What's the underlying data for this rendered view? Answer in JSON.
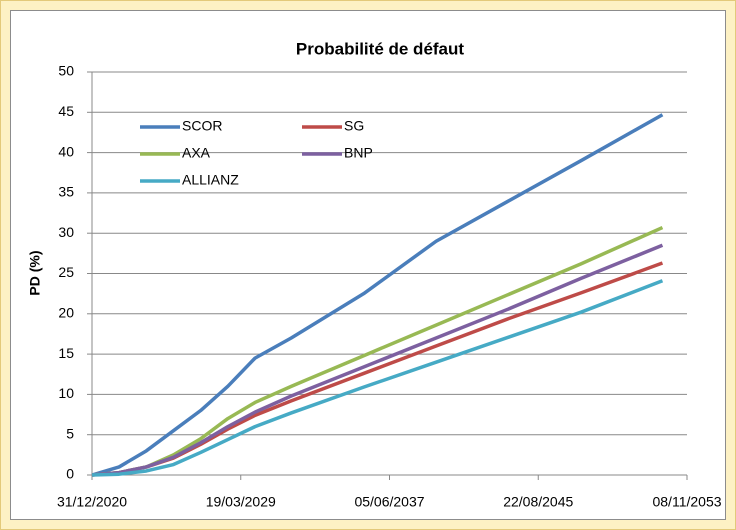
{
  "chart_data": {
    "type": "line",
    "title": "Probabilité de défaut",
    "y_label": "PD (%)",
    "x": [
      "2021-01-01",
      "2022-07-01",
      "2024-01-01",
      "2025-07-01",
      "2027-01-01",
      "2028-07-01",
      "2030-01-01",
      "2032-01-01",
      "2036-01-01",
      "2040-01-01",
      "2044-01-01",
      "2048-01-01",
      "2052-07-01"
    ],
    "series": [
      {
        "name": "SCOR",
        "color": "#4a7ebb",
        "values": [
          0,
          1.0,
          3.0,
          5.5,
          8.0,
          11.0,
          14.5,
          17.0,
          22.5,
          29.0,
          34.0,
          39.0,
          44.7
        ]
      },
      {
        "name": "SG",
        "color": "#be4b48",
        "values": [
          0,
          0.3,
          1.0,
          2.1,
          3.8,
          5.7,
          7.4,
          9.2,
          12.6,
          16.0,
          19.4,
          22.6,
          26.3
        ]
      },
      {
        "name": "AXA",
        "color": "#98b954",
        "values": [
          0,
          0.3,
          1.0,
          2.5,
          4.5,
          7.0,
          9.0,
          11.0,
          14.8,
          18.6,
          22.4,
          26.2,
          30.7
        ]
      },
      {
        "name": "BNP",
        "color": "#7d60a0",
        "values": [
          0,
          0.3,
          1.0,
          2.2,
          4.0,
          6.0,
          7.8,
          9.8,
          13.4,
          17.0,
          20.6,
          24.4,
          28.5
        ]
      },
      {
        "name": "ALLIANZ",
        "color": "#46aac5",
        "values": [
          0,
          0.1,
          0.5,
          1.3,
          2.8,
          4.4,
          6.0,
          7.7,
          10.9,
          14.0,
          17.1,
          20.2,
          24.1
        ]
      }
    ],
    "xlim": [
      "2020-12-31",
      "2053-11-08"
    ],
    "xticks": [
      {
        "value": "2020-12-31",
        "label": "31/12/2020"
      },
      {
        "value": "2029-03-19",
        "label": "19/03/2029"
      },
      {
        "value": "2037-06-05",
        "label": "05/06/2037"
      },
      {
        "value": "2045-08-22",
        "label": "22/08/2045"
      },
      {
        "value": "2053-11-08",
        "label": "08/11/2053"
      }
    ],
    "ylim": [
      0,
      50
    ],
    "yticks": [
      0,
      5,
      10,
      15,
      20,
      25,
      30,
      35,
      40,
      45,
      50
    ],
    "grid": true,
    "legend": "upper left"
  }
}
